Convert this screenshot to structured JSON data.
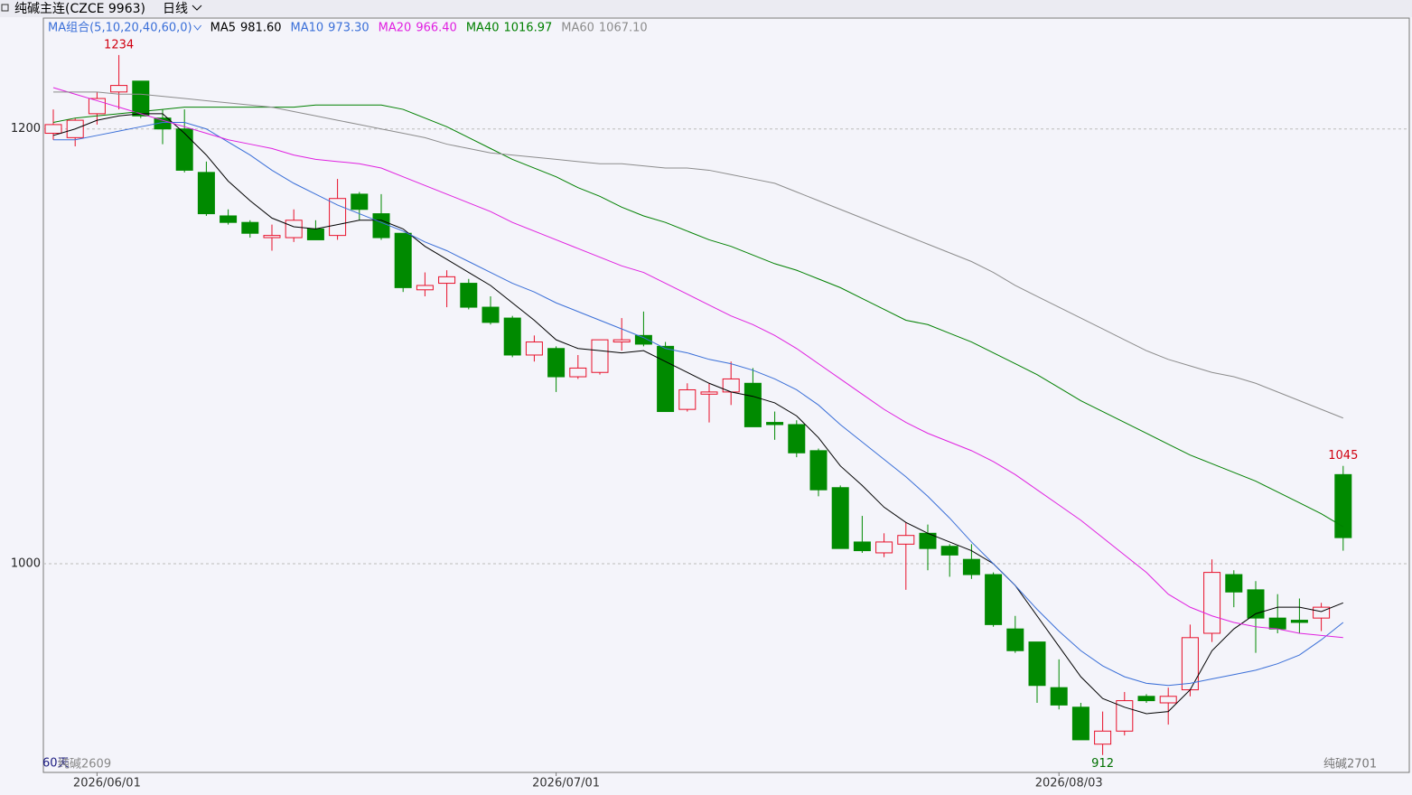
{
  "chart_data": {
    "type": "candlestick",
    "title": "纯碱主连(CZCE  9963)",
    "period": "日线",
    "ma_group": "MA组合(5,10,20,40,60,0)",
    "range_label": "60天",
    "contract_labels": [
      "纯碱2609",
      "纯碱2701"
    ],
    "categories": [
      null,
      null,
      "2026/06/01",
      null,
      null,
      null,
      null,
      null,
      null,
      null,
      null,
      null,
      null,
      null,
      null,
      null,
      null,
      null,
      null,
      null,
      null,
      null,
      null,
      "2026/07/01",
      null,
      null,
      null,
      null,
      null,
      null,
      null,
      null,
      null,
      null,
      null,
      null,
      null,
      null,
      null,
      null,
      null,
      null,
      null,
      null,
      null,
      null,
      "2026/08/03",
      null,
      null,
      null,
      null,
      null,
      null,
      null,
      null,
      null,
      null,
      null,
      null,
      null
    ],
    "open": [
      1198,
      1196,
      1207,
      1217,
      1222,
      1205,
      1200,
      1180,
      1160,
      1157,
      1150,
      1150,
      1154,
      1151,
      1170,
      1161,
      1152,
      1126,
      1129,
      1129,
      1118,
      1113,
      1096,
      1099,
      1086,
      1088,
      1102,
      1105,
      1100,
      1071,
      1078,
      1079,
      1083,
      1065,
      1064,
      1052,
      1035,
      1010,
      1005,
      1009,
      1014,
      1008,
      1002,
      995,
      970,
      964,
      943,
      934,
      917,
      923,
      939,
      936,
      942,
      968,
      995,
      988,
      975,
      974,
      975,
      1041
    ],
    "high": [
      1209,
      1205,
      1217,
      1234,
      1222,
      1209,
      1209,
      1185,
      1163,
      1158,
      1156,
      1163,
      1158,
      1177,
      1171,
      1170,
      1152,
      1134,
      1135,
      1131,
      1123,
      1114,
      1105,
      1100,
      1096,
      1103,
      1113,
      1116,
      1102,
      1083,
      1083,
      1093,
      1090,
      1070,
      1066,
      1053,
      1036,
      1022,
      1014,
      1019,
      1018,
      1009,
      1009,
      996,
      976,
      964,
      956,
      936,
      932,
      941,
      940,
      943,
      972,
      1002,
      997,
      992,
      986,
      984,
      982,
      1045
    ],
    "low": [
      1195,
      1192,
      1202,
      1209,
      1205,
      1193,
      1180,
      1160,
      1156,
      1150,
      1144,
      1148,
      1149,
      1149,
      1158,
      1149,
      1125,
      1123,
      1118,
      1117,
      1110,
      1095,
      1093,
      1079,
      1085,
      1087,
      1098,
      1100,
      1070,
      1070,
      1065,
      1073,
      1063,
      1057,
      1049,
      1031,
      1007,
      1005,
      1003,
      988,
      997,
      994,
      993,
      971,
      959,
      936,
      933,
      919,
      912,
      921,
      936,
      926,
      939,
      964,
      980,
      959,
      968,
      968,
      969,
      1006
    ],
    "close": [
      1202,
      1204,
      1214,
      1220,
      1206,
      1200,
      1181,
      1161,
      1157,
      1152,
      1151,
      1158,
      1149,
      1168,
      1163,
      1150,
      1127,
      1128,
      1132,
      1118,
      1111,
      1096,
      1102,
      1086,
      1090,
      1103,
      1103,
      1101,
      1070,
      1080,
      1079,
      1085,
      1063,
      1064,
      1051,
      1034,
      1007,
      1006,
      1010,
      1013,
      1007,
      1004,
      995,
      972,
      960,
      944,
      935,
      919,
      923,
      937,
      937,
      939,
      966,
      996,
      987,
      975,
      970,
      973,
      980,
      1012
    ],
    "up_color": "#e8102a",
    "down_color": "#008a00",
    "series": [
      {
        "name": "MA5",
        "legend_value": "981.60",
        "color": "#000000",
        "values": [
          1197,
          1200,
          1204,
          1206,
          1207,
          1207,
          1198,
          1188,
          1176,
          1167,
          1159,
          1155,
          1154,
          1156,
          1158,
          1158,
          1154,
          1146,
          1140,
          1134,
          1128,
          1120,
          1112,
          1103,
          1099,
          1098,
          1097,
          1098,
          1093,
          1088,
          1083,
          1079,
          1077,
          1074,
          1068,
          1058,
          1045,
          1036,
          1026,
          1019,
          1014,
          1010,
          1006,
          1000,
          990,
          976,
          962,
          948,
          938,
          934,
          931,
          932,
          942,
          960,
          970,
          977,
          980,
          980,
          978,
          982
        ]
      },
      {
        "name": "MA10",
        "legend_value": "973.30",
        "color": "#3a6fd8",
        "values": [
          1195,
          1195,
          1197,
          1199,
          1201,
          1203,
          1203,
          1200,
          1194,
          1188,
          1181,
          1175,
          1170,
          1165,
          1161,
          1157,
          1153,
          1148,
          1144,
          1139,
          1134,
          1129,
          1125,
          1120,
          1116,
          1112,
          1108,
          1104,
          1099,
          1097,
          1094,
          1092,
          1089,
          1085,
          1080,
          1073,
          1064,
          1056,
          1048,
          1040,
          1031,
          1021,
          1010,
          1000,
          990,
          979,
          969,
          960,
          953,
          948,
          945,
          944,
          945,
          947,
          949,
          951,
          954,
          958,
          965,
          973
        ]
      },
      {
        "name": "MA20",
        "legend_value": "966.40",
        "color": "#e020e0",
        "values": [
          1219,
          1216,
          1213,
          1210,
          1207,
          1204,
          1201,
          1198,
          1195,
          1193,
          1191,
          1188,
          1186,
          1185,
          1184,
          1182,
          1178,
          1174,
          1170,
          1166,
          1162,
          1157,
          1153,
          1149,
          1145,
          1141,
          1137,
          1134,
          1129,
          1124,
          1119,
          1114,
          1110,
          1105,
          1099,
          1092,
          1085,
          1078,
          1071,
          1065,
          1060,
          1056,
          1052,
          1047,
          1041,
          1034,
          1027,
          1020,
          1012,
          1004,
          996,
          986,
          980,
          976,
          973,
          971,
          970,
          968,
          967,
          966
        ]
      },
      {
        "name": "MA40",
        "legend_value": "1016.97",
        "color": "#008000",
        "values": [
          1203,
          1205,
          1206,
          1207,
          1208,
          1209,
          1210,
          1210,
          1210,
          1210,
          1210,
          1210,
          1211,
          1211,
          1211,
          1211,
          1209,
          1205,
          1201,
          1196,
          1191,
          1186,
          1182,
          1178,
          1173,
          1169,
          1164,
          1160,
          1157,
          1153,
          1149,
          1146,
          1142,
          1138,
          1135,
          1131,
          1127,
          1122,
          1117,
          1112,
          1110,
          1106,
          1102,
          1097,
          1092,
          1087,
          1081,
          1075,
          1070,
          1065,
          1060,
          1055,
          1050,
          1046,
          1042,
          1038,
          1033,
          1028,
          1023,
          1017
        ]
      },
      {
        "name": "MA60",
        "legend_value": "1067.10",
        "color": "#8c8c8c",
        "values": [
          1217,
          1217,
          1217,
          1216,
          1216,
          1215,
          1214,
          1213,
          1212,
          1211,
          1210,
          1208,
          1206,
          1204,
          1202,
          1200,
          1198,
          1196,
          1193,
          1191,
          1189,
          1188,
          1187,
          1186,
          1185,
          1184,
          1184,
          1183,
          1182,
          1182,
          1181,
          1179,
          1177,
          1175,
          1171,
          1167,
          1163,
          1159,
          1155,
          1151,
          1147,
          1143,
          1139,
          1134,
          1128,
          1123,
          1118,
          1113,
          1108,
          1103,
          1098,
          1094,
          1091,
          1088,
          1086,
          1083,
          1079,
          1075,
          1071,
          1067
        ]
      }
    ],
    "ylim": [
      904,
      1251
    ],
    "yticks": [
      1000,
      1200
    ],
    "grid": true
  }
}
